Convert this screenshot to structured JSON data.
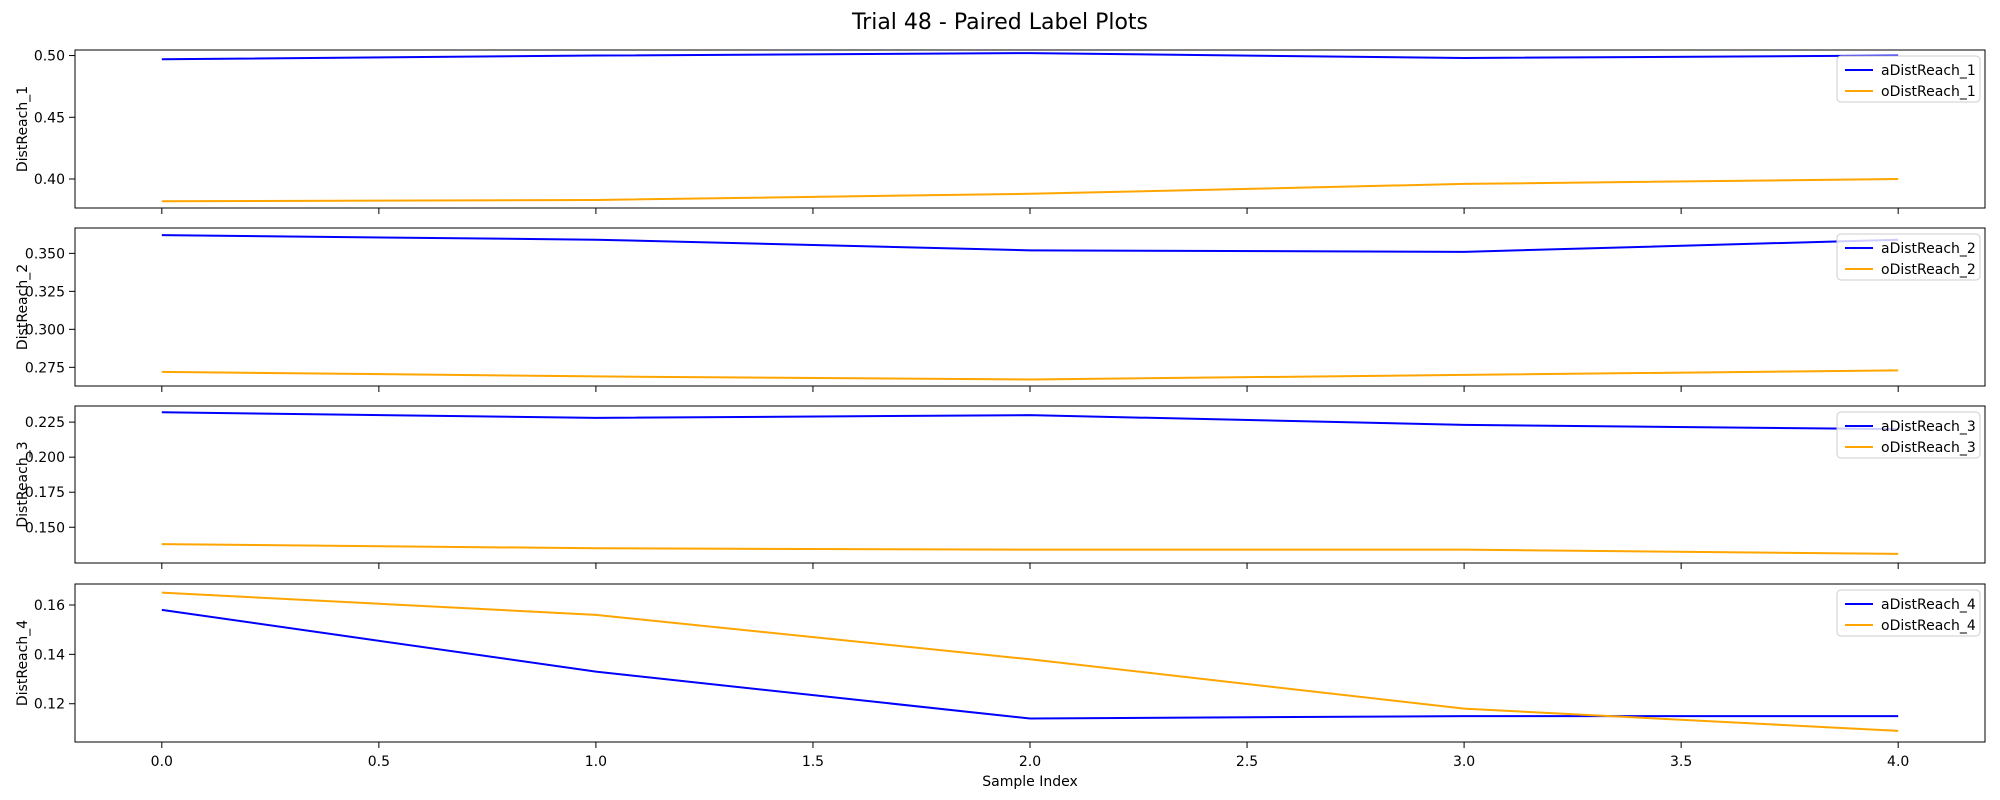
{
  "figure": {
    "title": "Trial 48 - Paired Label Plots",
    "xlabel": "Sample Index"
  },
  "x_ticks": [
    "0.0",
    "0.5",
    "1.0",
    "1.5",
    "2.0",
    "2.5",
    "3.0",
    "3.5",
    "4.0"
  ],
  "colors": {
    "a_series": "#0000ff",
    "o_series": "#ffa500"
  },
  "chart_data": [
    {
      "type": "line",
      "ylabel": "DistReach_1",
      "x": [
        0,
        1,
        2,
        3,
        4
      ],
      "xlim": [
        -0.2,
        4.2
      ],
      "ylim": [
        0.3765,
        0.5045
      ],
      "yticks": [
        "0.40",
        "0.45",
        "0.50"
      ],
      "legend": "top-right",
      "series": [
        {
          "name": "aDistReach_1",
          "values": [
            0.497,
            0.5,
            0.502,
            0.498,
            0.5
          ]
        },
        {
          "name": "oDistReach_1",
          "values": [
            0.382,
            0.383,
            0.388,
            0.396,
            0.4
          ]
        }
      ]
    },
    {
      "type": "line",
      "ylabel": "DistReach_2",
      "x": [
        0,
        1,
        2,
        3,
        4
      ],
      "xlim": [
        -0.2,
        4.2
      ],
      "ylim": [
        0.2627,
        0.3667
      ],
      "yticks": [
        "0.275",
        "0.300",
        "0.325",
        "0.350"
      ],
      "legend": "top-right",
      "series": [
        {
          "name": "aDistReach_2",
          "values": [
            0.362,
            0.359,
            0.352,
            0.351,
            0.359
          ]
        },
        {
          "name": "oDistReach_2",
          "values": [
            0.272,
            0.269,
            0.267,
            0.27,
            0.273
          ]
        }
      ]
    },
    {
      "type": "line",
      "ylabel": "DistReach_3",
      "x": [
        0,
        1,
        2,
        3,
        4
      ],
      "xlim": [
        -0.2,
        4.2
      ],
      "ylim": [
        0.1245,
        0.2365
      ],
      "yticks": [
        "0.150",
        "0.175",
        "0.200",
        "0.225"
      ],
      "legend": "top-right",
      "series": [
        {
          "name": "aDistReach_3",
          "values": [
            0.232,
            0.228,
            0.23,
            0.223,
            0.22
          ]
        },
        {
          "name": "oDistReach_3",
          "values": [
            0.138,
            0.135,
            0.134,
            0.134,
            0.131
          ]
        }
      ]
    },
    {
      "type": "line",
      "ylabel": "DistReach_4",
      "x": [
        0,
        1,
        2,
        3,
        4
      ],
      "xlim": [
        -0.2,
        4.2
      ],
      "ylim": [
        0.1045,
        0.1685
      ],
      "yticks": [
        "0.12",
        "0.14",
        "0.16"
      ],
      "legend": "top-right",
      "series": [
        {
          "name": "aDistReach_4",
          "values": [
            0.158,
            0.133,
            0.114,
            0.115,
            0.115
          ]
        },
        {
          "name": "oDistReach_4",
          "values": [
            0.165,
            0.156,
            0.138,
            0.118,
            0.109
          ]
        }
      ]
    }
  ]
}
